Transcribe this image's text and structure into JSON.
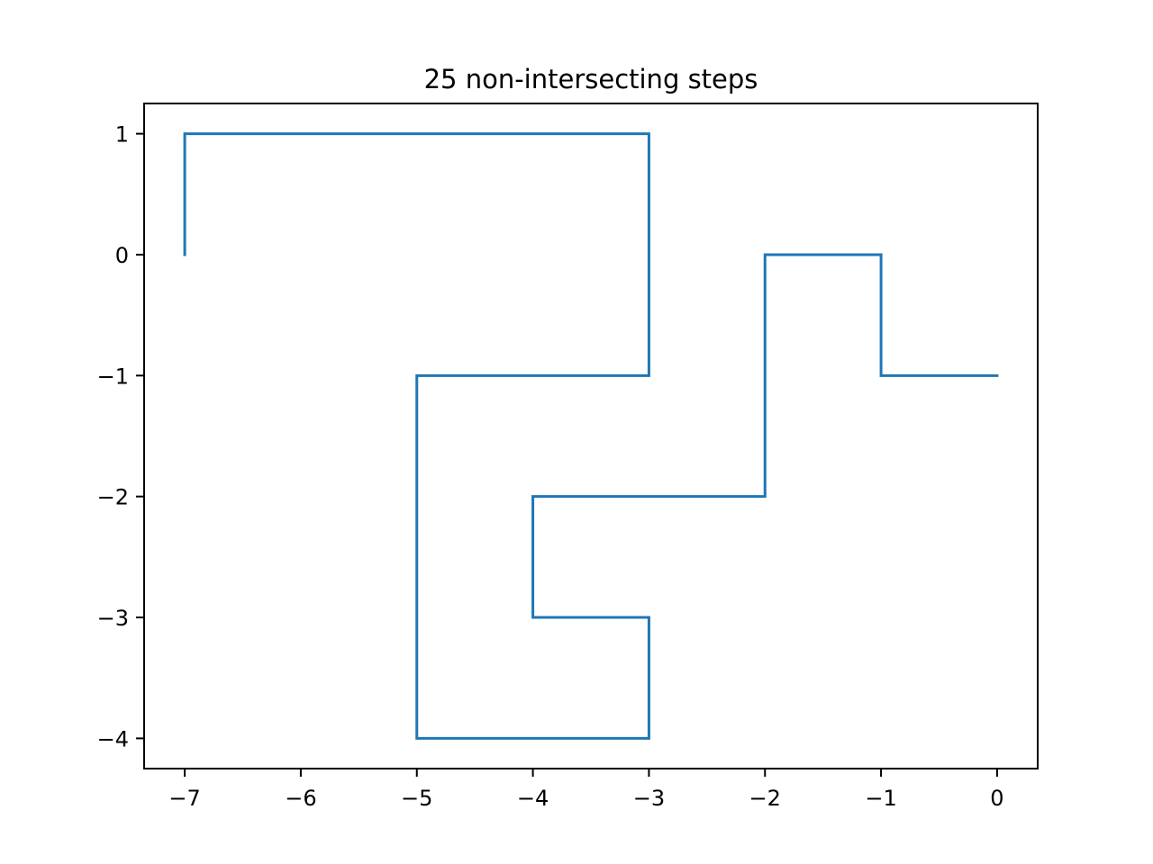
{
  "chart_data": {
    "type": "line",
    "title": "25 non-intersecting steps",
    "xlabel": "",
    "ylabel": "",
    "xlim": [
      -7.35,
      0.35
    ],
    "ylim": [
      -4.25,
      1.25
    ],
    "grid": false,
    "x_ticks": [
      -7,
      -6,
      -5,
      -4,
      -3,
      -2,
      -1,
      0
    ],
    "x_tick_labels": [
      "−7",
      "−6",
      "−5",
      "−4",
      "−3",
      "−2",
      "−1",
      "0"
    ],
    "y_ticks": [
      1,
      0,
      -1,
      -2,
      -3,
      -4
    ],
    "y_tick_labels": [
      "1",
      "0",
      "−1",
      "−2",
      "−3",
      "−4"
    ],
    "series": [
      {
        "color": "#1f77b4",
        "x": [
          0,
          -1,
          -1,
          -2,
          -2,
          -2,
          -3,
          -4,
          -4,
          -3,
          -3,
          -4,
          -5,
          -5,
          -5,
          -5,
          -4,
          -3,
          -3,
          -3,
          -4,
          -5,
          -6,
          -7,
          -7
        ],
        "y": [
          -1,
          -1,
          0,
          0,
          -1,
          -2,
          -2,
          -2,
          -3,
          -3,
          -4,
          -4,
          -4,
          -3,
          -2,
          -1,
          -1,
          -1,
          0,
          1,
          1,
          1,
          1,
          1,
          0
        ]
      }
    ]
  }
}
